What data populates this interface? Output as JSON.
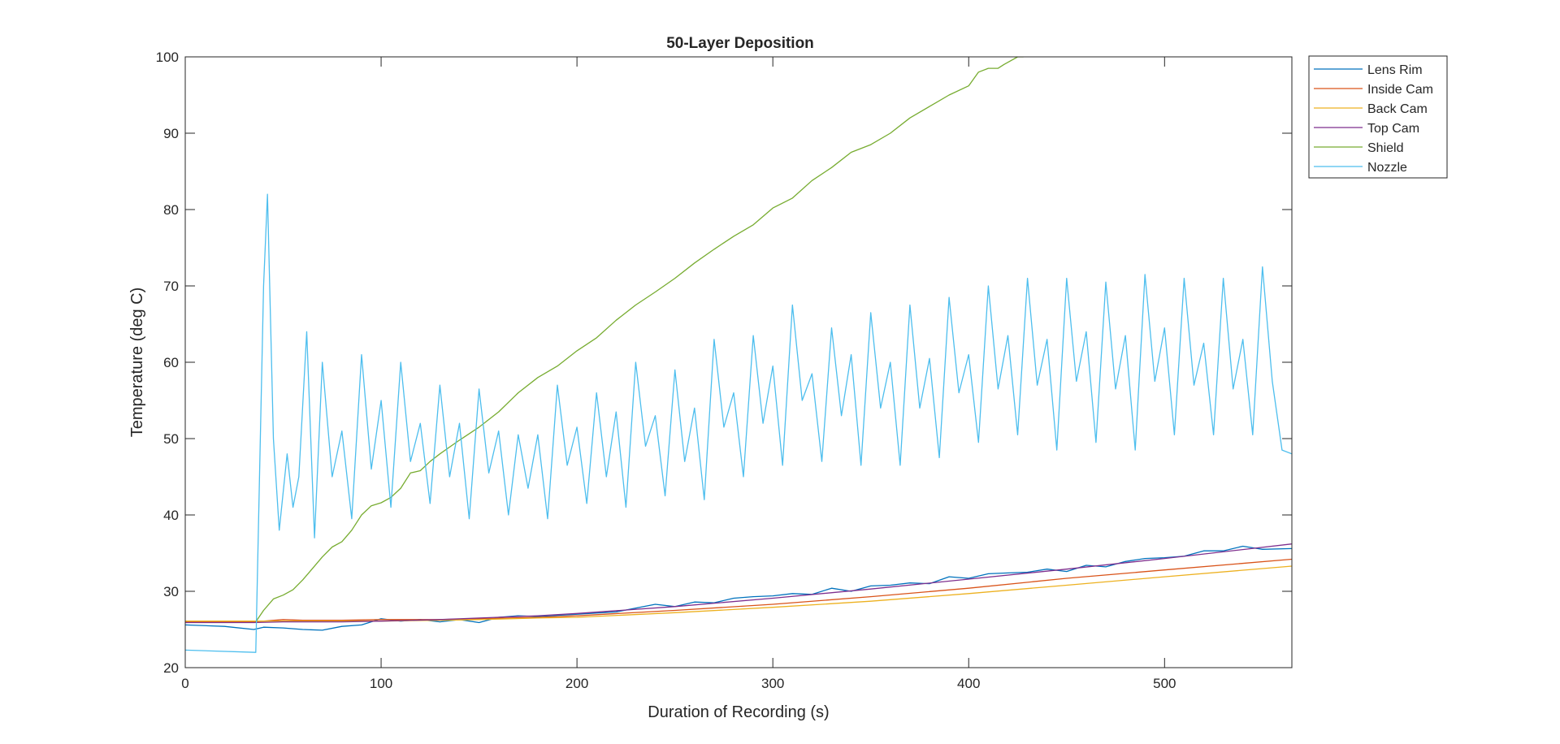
{
  "chart_data": {
    "type": "line",
    "title": "50-Layer Deposition",
    "xlabel": "Duration of Recording (s)",
    "ylabel": "Temperature (deg C)",
    "xlim": [
      0,
      565
    ],
    "ylim": [
      20,
      100
    ],
    "xticks": [
      0,
      100,
      200,
      300,
      400,
      500
    ],
    "yticks": [
      20,
      30,
      40,
      50,
      60,
      70,
      80,
      90,
      100
    ],
    "grid": false,
    "legend_position": "outside top-right",
    "series": [
      {
        "name": "Lens Rim",
        "color": "#0072BD",
        "x": [
          0,
          20,
          35,
          40,
          50,
          60,
          70,
          80,
          90,
          100,
          110,
          120,
          130,
          140,
          150,
          160,
          170,
          180,
          200,
          220,
          240,
          250,
          260,
          270,
          280,
          290,
          300,
          310,
          320,
          330,
          340,
          350,
          360,
          370,
          380,
          390,
          400,
          410,
          420,
          430,
          440,
          450,
          460,
          470,
          480,
          490,
          500,
          510,
          520,
          530,
          540,
          550,
          565
        ],
        "y": [
          25.6,
          25.4,
          25.0,
          25.3,
          25.2,
          25.0,
          24.9,
          25.4,
          25.6,
          26.4,
          26.1,
          26.3,
          26.0,
          26.3,
          25.9,
          26.6,
          26.8,
          26.7,
          27.0,
          27.3,
          28.3,
          28.0,
          28.6,
          28.5,
          29.1,
          29.3,
          29.4,
          29.7,
          29.6,
          30.4,
          30.0,
          30.7,
          30.8,
          31.1,
          31.0,
          31.9,
          31.7,
          32.3,
          32.4,
          32.5,
          32.9,
          32.6,
          33.4,
          33.2,
          33.9,
          34.3,
          34.4,
          34.6,
          35.3,
          35.3,
          35.9,
          35.5,
          35.6
        ]
      },
      {
        "name": "Inside Cam",
        "color": "#D95319",
        "x": [
          0,
          25,
          35,
          50,
          60,
          80,
          100,
          130,
          150,
          180,
          200,
          250,
          300,
          350,
          400,
          450,
          500,
          565
        ],
        "y": [
          26.0,
          26.0,
          26.0,
          26.3,
          26.2,
          26.2,
          26.3,
          26.3,
          26.4,
          26.6,
          26.8,
          27.5,
          28.3,
          29.3,
          30.4,
          31.7,
          32.8,
          34.2
        ]
      },
      {
        "name": "Back Cam",
        "color": "#EDB120",
        "x": [
          0,
          25,
          35,
          50,
          80,
          100,
          130,
          150,
          180,
          200,
          250,
          300,
          350,
          400,
          450,
          500,
          565
        ],
        "y": [
          26.1,
          26.1,
          26.1,
          26.1,
          26.1,
          26.1,
          26.2,
          26.3,
          26.5,
          26.6,
          27.2,
          27.9,
          28.7,
          29.7,
          30.8,
          31.9,
          33.3
        ]
      },
      {
        "name": "Top Cam",
        "color": "#7E2F8E",
        "x": [
          0,
          25,
          35,
          50,
          80,
          100,
          130,
          150,
          180,
          200,
          250,
          300,
          350,
          400,
          450,
          500,
          565
        ],
        "y": [
          25.9,
          25.9,
          25.9,
          26.0,
          26.0,
          26.1,
          26.3,
          26.5,
          26.8,
          27.1,
          28.0,
          29.1,
          30.3,
          31.6,
          32.9,
          34.3,
          36.2
        ]
      },
      {
        "name": "Shield",
        "color": "#77AC30",
        "x": [
          36,
          40,
          45,
          50,
          55,
          60,
          65,
          70,
          75,
          80,
          85,
          90,
          95,
          100,
          105,
          110,
          115,
          120,
          125,
          130,
          140,
          150,
          160,
          170,
          180,
          190,
          200,
          210,
          220,
          230,
          240,
          250,
          260,
          270,
          280,
          290,
          300,
          310,
          320,
          330,
          340,
          350,
          360,
          370,
          380,
          390,
          400,
          405,
          410,
          415,
          418,
          425,
          428
        ],
        "y": [
          26.0,
          27.5,
          29.0,
          29.5,
          30.2,
          31.5,
          33.0,
          34.5,
          35.8,
          36.5,
          38.0,
          40.0,
          41.2,
          41.6,
          42.3,
          43.5,
          45.5,
          45.8,
          47.0,
          48.0,
          49.8,
          51.5,
          53.5,
          56.0,
          58.0,
          59.5,
          61.5,
          63.2,
          65.5,
          67.5,
          69.2,
          71.0,
          73.0,
          74.8,
          76.5,
          78.0,
          80.2,
          81.5,
          83.8,
          85.5,
          87.5,
          88.5,
          90.0,
          92.0,
          93.5,
          95.0,
          96.2,
          98.0,
          98.5,
          98.5,
          99.0,
          100.0,
          100.0
        ]
      },
      {
        "name": "Nozzle",
        "color": "#4DBEEE",
        "x": [
          0,
          36,
          40,
          42,
          45,
          48,
          52,
          55,
          58,
          62,
          66,
          70,
          75,
          80,
          85,
          90,
          95,
          100,
          105,
          110,
          115,
          120,
          125,
          130,
          135,
          140,
          145,
          150,
          155,
          160,
          165,
          170,
          175,
          180,
          185,
          190,
          195,
          200,
          205,
          210,
          215,
          220,
          225,
          230,
          235,
          240,
          245,
          250,
          255,
          260,
          265,
          270,
          275,
          280,
          285,
          290,
          295,
          300,
          305,
          310,
          315,
          320,
          325,
          330,
          335,
          340,
          345,
          350,
          355,
          360,
          365,
          370,
          375,
          380,
          385,
          390,
          395,
          400,
          405,
          410,
          415,
          420,
          425,
          430,
          435,
          440,
          445,
          450,
          455,
          460,
          465,
          470,
          475,
          480,
          485,
          490,
          495,
          500,
          505,
          510,
          515,
          520,
          525,
          530,
          535,
          540,
          545,
          550,
          555,
          560,
          565
        ],
        "y": [
          22.3,
          22.0,
          70.0,
          82.0,
          50.0,
          38.0,
          48.0,
          41.0,
          45.0,
          64.0,
          37.0,
          60.0,
          45.0,
          51.0,
          39.5,
          61.0,
          46.0,
          55.0,
          41.0,
          60.0,
          47.0,
          52.0,
          41.5,
          57.0,
          45.0,
          52.0,
          39.5,
          56.5,
          45.5,
          51.0,
          40.0,
          50.5,
          43.5,
          50.5,
          39.5,
          57.0,
          46.5,
          51.5,
          41.5,
          56.0,
          45.0,
          53.5,
          41.0,
          60.0,
          49.0,
          53.0,
          42.5,
          59.0,
          47.0,
          54.0,
          42.0,
          63.0,
          51.5,
          56.0,
          45.0,
          63.5,
          52.0,
          59.5,
          46.5,
          67.5,
          55.0,
          58.5,
          47.0,
          64.5,
          53.0,
          61.0,
          46.5,
          66.5,
          54.0,
          60.0,
          46.5,
          67.5,
          54.0,
          60.5,
          47.5,
          68.5,
          56.0,
          61.0,
          49.5,
          70.0,
          56.5,
          63.5,
          50.5,
          71.0,
          57.0,
          63.0,
          48.5,
          71.0,
          57.5,
          64.0,
          49.5,
          70.5,
          56.5,
          63.5,
          48.5,
          71.5,
          57.5,
          64.5,
          50.5,
          71.0,
          57.0,
          62.5,
          50.5,
          71.0,
          56.5,
          63.0,
          50.5,
          72.5,
          57.5,
          48.5,
          48.0
        ]
      }
    ]
  }
}
